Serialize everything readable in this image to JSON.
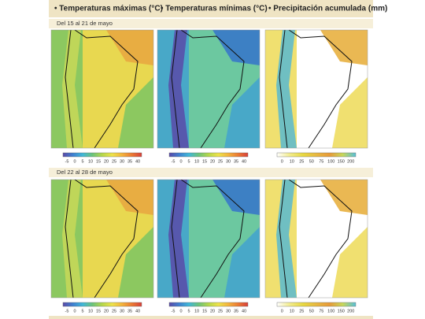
{
  "headers": [
    "• Temperaturas máximas (°C)",
    "• Temperaturas mínimas (°C)",
    "• Precipitación acumulada (mm)"
  ],
  "rows": [
    {
      "label": "Del 15 al 21 de mayo"
    },
    {
      "label": "Del 22 al 28 de mayo"
    }
  ],
  "scales": [
    [
      -5,
      0,
      5,
      10,
      15,
      20,
      25,
      30,
      35,
      40
    ],
    [
      -5,
      0,
      5,
      10,
      15,
      20,
      25,
      30,
      35,
      40
    ],
    [
      0,
      10,
      25,
      50,
      75,
      100,
      150,
      200
    ]
  ]
}
